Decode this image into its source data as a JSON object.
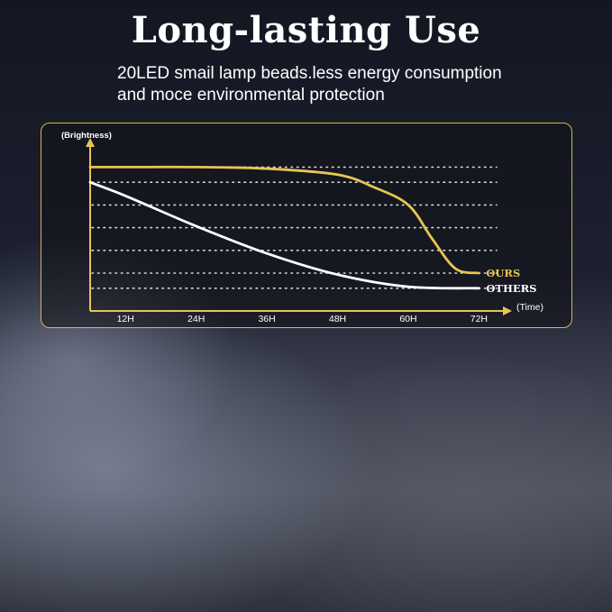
{
  "headline": "Long-lasting Use",
  "subtitle_lines": [
    "20LED smail lamp beads.less energy consumption",
    "and moce environmental protection"
  ],
  "colors": {
    "accent_gold": "#e7c553",
    "panel_border": "#d8b54e",
    "others_line": "#ffffff",
    "grid_dots": "#d9d9d9"
  },
  "chart_data": {
    "type": "line",
    "ylabel": "(Brightness)",
    "xlabel": "(Time)",
    "x": [
      "12H",
      "24H",
      "36H",
      "48H",
      "60H",
      "72H"
    ],
    "xlim": [
      6,
      75
    ],
    "ylim": [
      0,
      100
    ],
    "grid": "dotted horizontal",
    "series": [
      {
        "name": "OURS",
        "color": "#e7c553",
        "points": [
          [
            6,
            95
          ],
          [
            12,
            95
          ],
          [
            24,
            95
          ],
          [
            36,
            94
          ],
          [
            48,
            90
          ],
          [
            54,
            82
          ],
          [
            60,
            70
          ],
          [
            64,
            48
          ],
          [
            68,
            28
          ],
          [
            72,
            25
          ]
        ]
      },
      {
        "name": "OTHERS",
        "color": "#ffffff",
        "points": [
          [
            6,
            85
          ],
          [
            12,
            76
          ],
          [
            24,
            56
          ],
          [
            36,
            38
          ],
          [
            48,
            24
          ],
          [
            60,
            16
          ],
          [
            72,
            15
          ]
        ]
      }
    ]
  }
}
